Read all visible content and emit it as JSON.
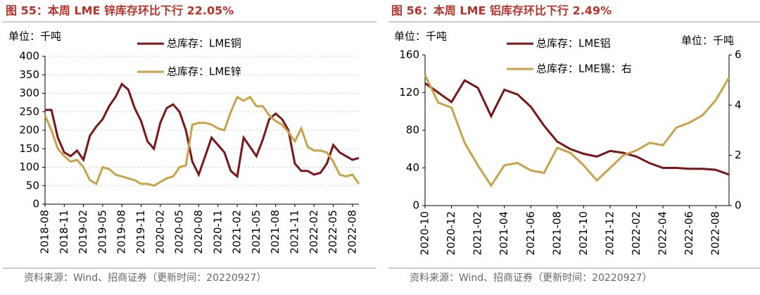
{
  "chart_data": [
    {
      "type": "line",
      "title": "图 55：本周 LME 锌库存环比下行 22.05%",
      "unit": "单位：千吨",
      "source": "资料来源：Wind、招商证券（更新时间：20220927）",
      "categories": [
        "2018-08",
        null,
        null,
        "2018-11",
        null,
        null,
        "2019-02",
        null,
        null,
        "2019-05",
        null,
        null,
        "2019-08",
        null,
        null,
        "2019-11",
        null,
        null,
        "2020-02",
        null,
        null,
        "2020-05",
        null,
        null,
        "2020-08",
        null,
        null,
        "2020-11",
        null,
        null,
        "2021-02",
        null,
        null,
        "2021-05",
        null,
        null,
        "2021-08",
        null,
        null,
        "2021-11",
        null,
        null,
        "2022-02",
        null,
        null,
        "2022-05",
        null,
        null,
        "2022-08",
        null
      ],
      "series": [
        {
          "name": "总库存：LME铜",
          "color": "#7a1518",
          "values": [
            255,
            255,
            180,
            140,
            130,
            145,
            120,
            185,
            210,
            230,
            265,
            290,
            325,
            310,
            260,
            225,
            170,
            150,
            220,
            260,
            270,
            250,
            200,
            115,
            80,
            130,
            180,
            160,
            140,
            90,
            75,
            180,
            155,
            130,
            175,
            230,
            245,
            230,
            200,
            110,
            90,
            90,
            80,
            85,
            110,
            160,
            140,
            130,
            120,
            125
          ]
        },
        {
          "name": "总库存：LME锌",
          "color": "#c9a24a",
          "values": [
            240,
            200,
            150,
            130,
            115,
            120,
            100,
            65,
            55,
            100,
            95,
            80,
            75,
            70,
            65,
            55,
            55,
            50,
            60,
            70,
            75,
            100,
            105,
            215,
            220,
            220,
            215,
            205,
            200,
            250,
            290,
            280,
            290,
            265,
            265,
            240,
            225,
            215,
            195,
            170,
            205,
            155,
            145,
            145,
            140,
            115,
            80,
            75,
            80,
            55
          ]
        }
      ],
      "ylim": [
        0,
        400
      ],
      "yticks": [
        0,
        50,
        100,
        150,
        200,
        250,
        300,
        350,
        400
      ],
      "grid": true
    },
    {
      "type": "line",
      "title": "图 56：本周 LME 铝库存环比下行 2.49%",
      "unit": "单位：千吨",
      "unit_right": "单位：千吨",
      "source": "资料来源：Wind、招商证券（更新时间：20220927）",
      "categories": [
        "2020-10",
        null,
        "2020-12",
        null,
        "2021-02",
        null,
        "2021-04",
        null,
        "2021-06",
        null,
        "2021-08",
        null,
        "2021-10",
        null,
        "2021-12",
        null,
        "2022-02",
        null,
        "2022-04",
        null,
        "2022-06",
        null,
        "2022-08",
        null
      ],
      "series": [
        {
          "name": "总库存：LME铝",
          "color": "#7a1518",
          "values": [
            130,
            120,
            110,
            133,
            125,
            95,
            123,
            118,
            105,
            85,
            68,
            60,
            55,
            52,
            58,
            56,
            52,
            45,
            40,
            40,
            39,
            39,
            38,
            33
          ]
        },
        {
          "name": "总库存：LME锡：右",
          "color": "#c9a24a",
          "axis": "y2",
          "values": [
            5.2,
            4.1,
            3.9,
            2.5,
            1.6,
            0.8,
            1.6,
            1.7,
            1.4,
            1.3,
            2.3,
            2.1,
            1.6,
            1.0,
            1.5,
            2.0,
            2.2,
            2.5,
            2.4,
            3.1,
            3.3,
            3.6,
            4.2,
            5.1
          ]
        }
      ],
      "ylim": [
        0,
        160
      ],
      "yticks": [
        0,
        40,
        80,
        120,
        160
      ],
      "y2lim": [
        0,
        6
      ],
      "y2ticks": [
        0,
        2,
        4,
        6
      ],
      "grid": false
    }
  ]
}
